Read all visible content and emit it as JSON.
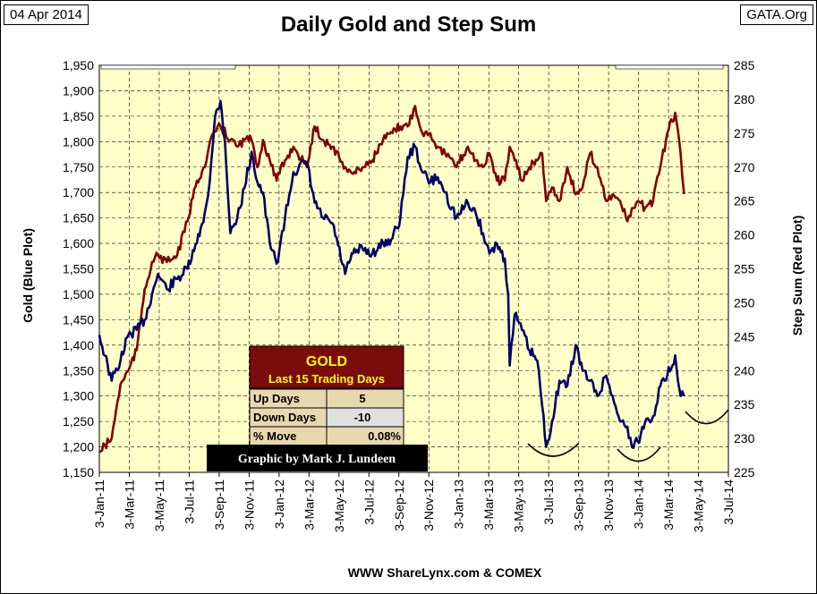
{
  "header": {
    "date": "04 Apr 2014",
    "source": "GATA.Org",
    "title": "Daily Gold and Step Sum"
  },
  "footer": "WWW ShareLynx.com & COMEX",
  "credit": "Graphic by Mark J. Lundeen",
  "colors": {
    "plot_bg": "#ffffc8",
    "gold": "#000066",
    "step": "#800000",
    "table_header": "#7a0c0c",
    "table_title": "#ffff00"
  },
  "table": {
    "title": "GOLD",
    "subtitle": "Last 15 Trading Days",
    "rows": [
      {
        "label": "Up Days",
        "value": "5"
      },
      {
        "label": "Down Days",
        "value": "-10"
      },
      {
        "label": "% Move",
        "value": "0.08%"
      }
    ]
  },
  "chart_data": {
    "type": "line",
    "title": "Daily Gold and Step Sum",
    "ylabel": "Gold   (Blue Plot)",
    "y2label": "Step Sum   (Red Plot)",
    "ylim": [
      1150,
      1950
    ],
    "y2lim": [
      225,
      285
    ],
    "xlim": [
      "2011-01-03",
      "2014-07-03"
    ],
    "y_ticks": [
      "1,150",
      "1,200",
      "1,250",
      "1,300",
      "1,350",
      "1,400",
      "1,450",
      "1,500",
      "1,550",
      "1,600",
      "1,650",
      "1,700",
      "1,750",
      "1,800",
      "1,850",
      "1,900",
      "1,950"
    ],
    "y2_ticks": [
      "225",
      "230",
      "235",
      "240",
      "245",
      "250",
      "255",
      "260",
      "265",
      "270",
      "275",
      "280",
      "285"
    ],
    "x_ticks": [
      "3-Jan-11",
      "3-Mar-11",
      "3-May-11",
      "3-Jul-11",
      "3-Sep-11",
      "3-Nov-11",
      "3-Jan-12",
      "3-Mar-12",
      "3-May-12",
      "3-Jul-12",
      "3-Sep-12",
      "3-Nov-12",
      "3-Jan-13",
      "3-Mar-13",
      "3-May-13",
      "3-Jul-13",
      "3-Sep-13",
      "3-Nov-13",
      "3-Jan-14",
      "3-Mar-14",
      "3-May-14",
      "3-Jul-14"
    ],
    "grid": true,
    "series": [
      {
        "axis": "left",
        "x": [
          "2011-01-03",
          "2011-01-20",
          "2011-01-28",
          "2011-02-15",
          "2011-03-03",
          "2011-03-20",
          "2011-04-05",
          "2011-04-20",
          "2011-05-02",
          "2011-05-20",
          "2011-06-10",
          "2011-07-01",
          "2011-07-20",
          "2011-08-05",
          "2011-08-15",
          "2011-08-22",
          "2011-08-26",
          "2011-09-06",
          "2011-09-15",
          "2011-09-26",
          "2011-10-10",
          "2011-10-25",
          "2011-11-08",
          "2011-11-20",
          "2011-12-01",
          "2011-12-15",
          "2011-12-29",
          "2012-01-15",
          "2012-02-01",
          "2012-02-28",
          "2012-03-15",
          "2012-04-01",
          "2012-04-20",
          "2012-05-16",
          "2012-06-01",
          "2012-06-20",
          "2012-07-10",
          "2012-08-01",
          "2012-08-20",
          "2012-09-05",
          "2012-09-20",
          "2012-10-05",
          "2012-10-20",
          "2012-11-05",
          "2012-11-20",
          "2012-12-05",
          "2012-12-28",
          "2013-01-20",
          "2013-02-05",
          "2013-02-20",
          "2013-03-05",
          "2013-03-20",
          "2013-04-05",
          "2013-04-12",
          "2013-04-15",
          "2013-04-25",
          "2013-05-10",
          "2013-05-25",
          "2013-06-10",
          "2013-06-20",
          "2013-06-28",
          "2013-07-10",
          "2013-07-25",
          "2013-08-10",
          "2013-08-27",
          "2013-09-10",
          "2013-09-25",
          "2013-10-10",
          "2013-10-28",
          "2013-11-10",
          "2013-11-25",
          "2013-12-10",
          "2013-12-19",
          "2013-12-31",
          "2014-01-15",
          "2014-01-31",
          "2014-02-15",
          "2014-03-01",
          "2014-03-17",
          "2014-03-28",
          "2014-04-04"
        ],
        "values": [
          1420,
          1360,
          1330,
          1370,
          1420,
          1430,
          1450,
          1500,
          1540,
          1510,
          1530,
          1550,
          1600,
          1660,
          1720,
          1800,
          1850,
          1880,
          1800,
          1620,
          1650,
          1710,
          1780,
          1720,
          1700,
          1600,
          1560,
          1650,
          1740,
          1760,
          1680,
          1650,
          1640,
          1540,
          1580,
          1590,
          1580,
          1600,
          1610,
          1650,
          1770,
          1790,
          1740,
          1720,
          1730,
          1700,
          1650,
          1680,
          1660,
          1620,
          1580,
          1600,
          1570,
          1500,
          1360,
          1460,
          1430,
          1390,
          1370,
          1280,
          1200,
          1250,
          1330,
          1320,
          1400,
          1350,
          1330,
          1300,
          1340,
          1300,
          1250,
          1240,
          1200,
          1210,
          1250,
          1260,
          1320,
          1340,
          1380,
          1300,
          1300
        ]
      },
      {
        "axis": "right",
        "x": [
          "2011-01-03",
          "2011-01-28",
          "2011-02-15",
          "2011-03-03",
          "2011-03-20",
          "2011-04-05",
          "2011-04-20",
          "2011-05-02",
          "2011-05-20",
          "2011-06-10",
          "2011-07-01",
          "2011-07-20",
          "2011-08-05",
          "2011-08-22",
          "2011-09-06",
          "2011-09-26",
          "2011-10-10",
          "2011-10-25",
          "2011-11-08",
          "2011-11-20",
          "2011-12-01",
          "2011-12-15",
          "2011-12-29",
          "2012-01-15",
          "2012-02-01",
          "2012-02-28",
          "2012-03-15",
          "2012-04-01",
          "2012-04-20",
          "2012-05-16",
          "2012-06-01",
          "2012-06-20",
          "2012-07-10",
          "2012-08-01",
          "2012-08-20",
          "2012-09-05",
          "2012-09-20",
          "2012-10-05",
          "2012-10-20",
          "2012-11-05",
          "2012-11-20",
          "2012-12-05",
          "2012-12-28",
          "2013-01-20",
          "2013-02-05",
          "2013-02-20",
          "2013-03-05",
          "2013-03-20",
          "2013-04-05",
          "2013-04-15",
          "2013-04-25",
          "2013-05-10",
          "2013-05-25",
          "2013-06-10",
          "2013-06-20",
          "2013-06-28",
          "2013-07-10",
          "2013-07-25",
          "2013-08-10",
          "2013-08-27",
          "2013-09-10",
          "2013-09-25",
          "2013-10-10",
          "2013-10-28",
          "2013-11-10",
          "2013-11-25",
          "2013-12-10",
          "2013-12-31",
          "2014-01-15",
          "2014-01-31",
          "2014-02-15",
          "2014-03-01",
          "2014-03-17",
          "2014-03-28",
          "2014-04-04"
        ],
        "values": [
          228,
          230,
          238,
          240,
          243,
          252,
          256,
          257,
          256,
          257,
          262,
          268,
          270,
          275,
          276,
          274,
          273,
          274,
          274,
          270,
          274,
          271,
          268,
          271,
          273,
          270,
          276,
          274,
          273,
          270,
          269,
          270,
          271,
          274,
          275,
          276,
          276,
          279,
          275,
          275,
          273,
          272,
          270,
          273,
          271,
          270,
          272,
          268,
          268,
          273,
          271,
          268,
          270,
          271,
          272,
          265,
          267,
          265,
          270,
          266,
          267,
          272,
          270,
          265,
          266,
          265,
          262,
          265,
          264,
          265,
          270,
          275,
          278,
          272,
          266
        ]
      }
    ],
    "annotations": [
      "trough curves under Jul-13, Jan-14 and May-14 lows"
    ]
  }
}
